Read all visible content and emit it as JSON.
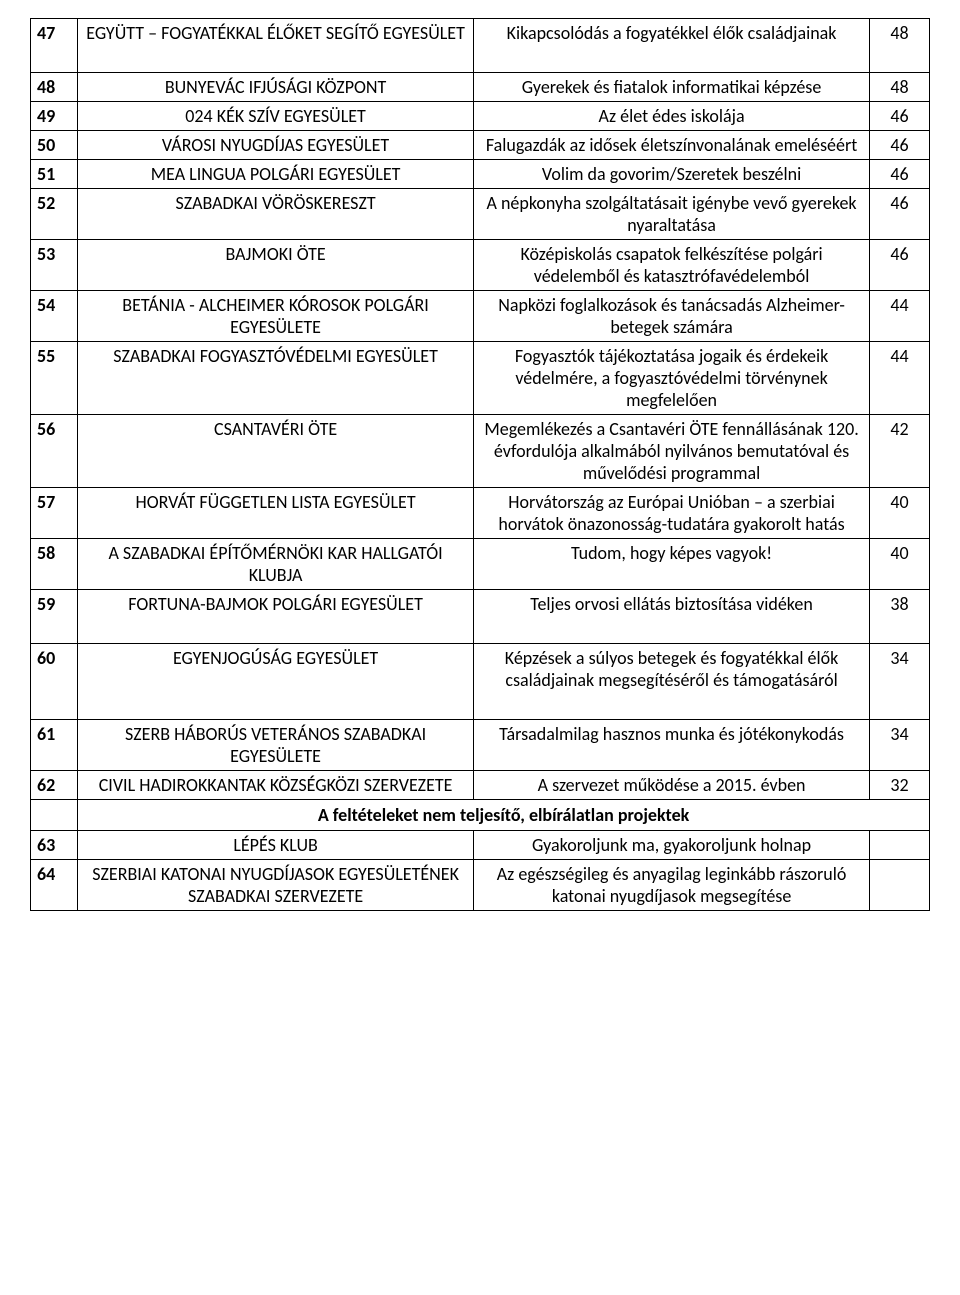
{
  "rows": [
    {
      "n": "47",
      "org": "EGYÜTT – FOGYATÉKKAL ÉLŐKET SEGÍTŐ EGYESÜLET",
      "proj": "Kikapcsolódás a fogyatékkel élők családjainak",
      "score": "48",
      "tall": true
    },
    {
      "n": "48",
      "org": "BUNYEVÁC IFJÚSÁGI KÖZPONT",
      "proj": "Gyerekek és fiatalok informatikai képzése",
      "score": "48"
    },
    {
      "n": "49",
      "org": "024 KÉK SZÍV EGYESÜLET",
      "proj": "Az élet édes iskolája",
      "score": "46"
    },
    {
      "n": "50",
      "org": "VÁROSI NYUGDÍJAS EGYESÜLET",
      "proj": "Falugazdák az idősek életszínvonalának emeléséért",
      "score": "46"
    },
    {
      "n": "51",
      "org": "MEA LINGUA POLGÁRI EGYESÜLET",
      "proj": "Volim da govorim/Szeretek beszélni",
      "score": "46"
    },
    {
      "n": "52",
      "org": "SZABADKAI VÖRÖSKERESZT",
      "proj": "A népkonyha szolgáltatásait igénybe vevő gyerekek nyaraltatása",
      "score": "46"
    },
    {
      "n": "53",
      "org": "BAJMOKI ÖTE",
      "proj": "Középiskolás csapatok felkészítése polgári védelemből és katasztrófavédelemból",
      "score": "46"
    },
    {
      "n": "54",
      "org": "BETÁNIA - ALCHEIMER KÓROSOK POLGÁRI EGYESÜLETE",
      "proj": "Napközi foglalkozások és tanácsadás Alzheimer-betegek számára",
      "score": "44"
    },
    {
      "n": "55",
      "org": "SZABADKAI FOGYASZTÓVÉDELMI EGYESÜLET",
      "proj": "Fogyasztók tájékoztatása jogaik és érdekeik védelmére, a fogyasztóvédelmi törvénynek megfelelően",
      "score": "44"
    },
    {
      "n": "56",
      "org": "CSANTAVÉRI ÖTE",
      "proj": "Megemlékezés a Csantavéri ÖTE fennállásának 120. évfordulója alkalmából nyilvános bemutatóval és művelődési programmal",
      "score": "42"
    },
    {
      "n": "57",
      "org": "HORVÁT FÜGGETLEN LISTA EGYESÜLET",
      "proj": "Horvátország az Európai Unióban – a szerbiai horvátok önazonosság-tudatára gyakorolt hatás",
      "score": "40"
    },
    {
      "n": "58",
      "org": "A SZABADKAI ÉPÍTŐMÉRNÖKI KAR HALLGATÓI KLUBJA",
      "proj": "Tudom, hogy képes vagyok!",
      "score": "40"
    },
    {
      "n": "59",
      "org": "FORTUNA-BAJMOK POLGÁRI EGYESÜLET",
      "proj": "Teljes orvosi ellátás biztosítása vidéken",
      "score": "38",
      "tall": true
    },
    {
      "n": "60",
      "org": "EGYENJOGÚSÁG EGYESÜLET",
      "proj": "Képzések a súlyos betegek és fogyatékkal élők családjainak megsegítéséről és támogatásáról",
      "score": "34",
      "tall": true
    },
    {
      "n": "61",
      "org": "SZERB HÁBORÚS VETERÁNOS SZABADKAI EGYESÜLETE",
      "proj": "Társadalmilag hasznos munka és jótékonykodás",
      "score": "34"
    },
    {
      "n": "62",
      "org": "CIVIL HADIROKKANTAK KÖZSÉGKÖZI SZERVEZETE",
      "proj": "A szervezet működése a 2015. évben",
      "score": "32"
    }
  ],
  "subhead": "A feltételeket nem teljesítő, elbírálatlan projektek",
  "rows2": [
    {
      "n": "63",
      "org": "LÉPÉS KLUB",
      "proj": "Gyakoroljunk ma, gyakoroljunk holnap",
      "score": ""
    },
    {
      "n": "64",
      "org": "SZERBIAI KATONAI NYUGDÍJASOK EGYESÜLETÉNEK SZABADKAI SZERVEZETE",
      "proj": "Az egészségileg és anyagilag leginkább rászoruló katonai nyugdíjasok megsegítése",
      "score": ""
    }
  ]
}
